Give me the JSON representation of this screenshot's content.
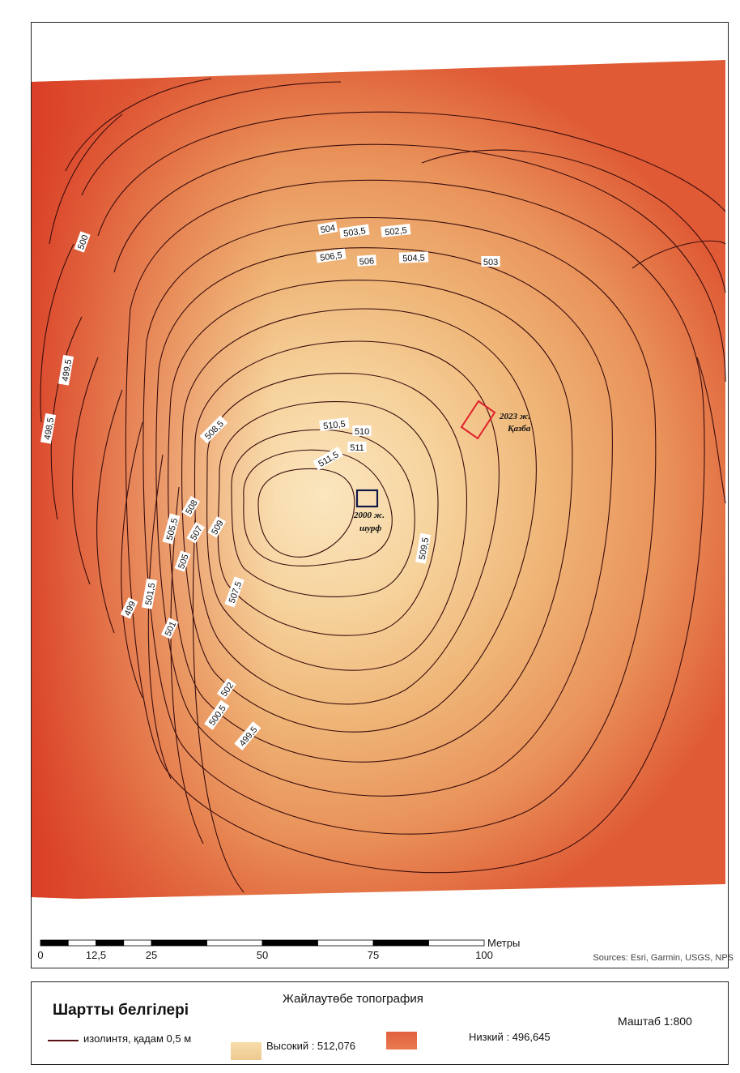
{
  "map": {
    "contour_labels": [
      "504",
      "503,5",
      "502,5",
      "506,5",
      "506",
      "504,5",
      "503",
      "500",
      "499,5",
      "498,5",
      "508,5",
      "510,5",
      "510",
      "511",
      "511,5",
      "508",
      "507",
      "509",
      "505,5",
      "505",
      "509,5",
      "507,5",
      "501,5",
      "499",
      "501",
      "502",
      "500,5",
      "499,5"
    ],
    "annotations": {
      "excavation": [
        "2023 ж.",
        "Қазба"
      ],
      "pit": [
        "2000 ж.",
        "шурф"
      ]
    },
    "colors": {
      "high": "#fbe6bf",
      "mid": "#eda060",
      "low": "#dd4a2c",
      "contour": "#3a0d0d",
      "excavation_outline": "#e0202a",
      "pit_outline": "#101848"
    }
  },
  "scale_bar": {
    "ticks": [
      "0",
      "12,5",
      "25",
      "50",
      "75",
      "100"
    ],
    "units": "Метры"
  },
  "sources": "Sources: Esri, Garmin, USGS, NPS",
  "legend": {
    "title": "Шартты белгілері",
    "topo_title": "Жайлаутөбе топография",
    "scale": "Маштаб 1:800",
    "isoline": "изолинтя, қадам 0,5 м",
    "high": "Высокий : 512,076",
    "low": "Низкий : 496,645"
  }
}
